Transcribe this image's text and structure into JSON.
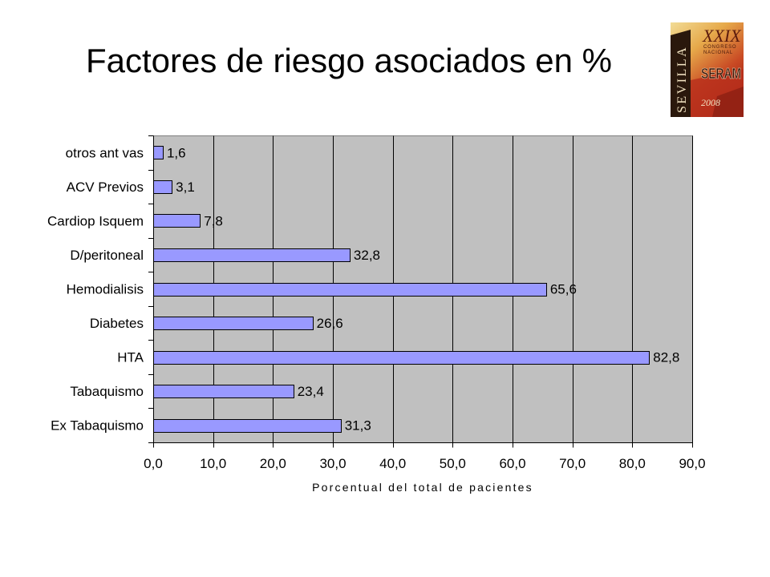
{
  "logo": {
    "city": "SEVILLA",
    "edition": "XXIX",
    "line1": "CONGRESO",
    "line2": "NACIONAL",
    "org": "SERAM",
    "year": "2008"
  },
  "chart_data": {
    "type": "bar",
    "orientation": "horizontal",
    "title": "Factores de riesgo asociados en %",
    "xlabel": "Porcentual del total de pacientes",
    "ylabel": "",
    "categories": [
      "otros ant vas",
      "ACV Previos",
      "Cardiop Isquem",
      "D/peritoneal",
      "Hemodialisis",
      "Diabetes",
      "HTA",
      "Tabaquismo",
      "Ex Tabaquismo"
    ],
    "values": [
      1.6,
      3.1,
      7.8,
      32.8,
      65.6,
      26.6,
      82.8,
      23.4,
      31.3
    ],
    "value_labels": [
      "1,6",
      "3,1",
      "7,8",
      "32,8",
      "65,6",
      "26,6",
      "82,8",
      "23,4",
      "31,3"
    ],
    "xlim": [
      0,
      90
    ],
    "xticks": [
      0,
      10,
      20,
      30,
      40,
      50,
      60,
      70,
      80,
      90
    ],
    "xtick_labels": [
      "0,0",
      "10,0",
      "20,0",
      "30,0",
      "40,0",
      "50,0",
      "60,0",
      "70,0",
      "80,0",
      "90,0"
    ],
    "grid": {
      "x": true,
      "y": false
    },
    "legend": "none",
    "colors": {
      "bar_fill": "#9999FF",
      "bar_stroke": "#000000",
      "plot_background": "#C0C0C0",
      "plot_border": "#808080",
      "gridline": "#000000",
      "axis": "#000000"
    }
  }
}
